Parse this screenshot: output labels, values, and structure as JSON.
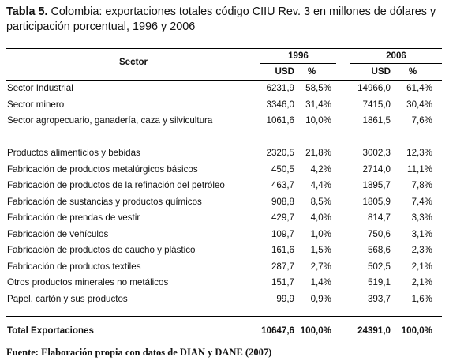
{
  "title": {
    "label": "Tabla 5.",
    "text": "Colombia: exportaciones totales código CIIU Rev. 3 en millones de dólares y participación porcentual, 1996 y 2006"
  },
  "table": {
    "header": {
      "sector": "Sector",
      "years": [
        "1996",
        "2006"
      ],
      "units": [
        "USD",
        "%",
        "USD",
        "%"
      ]
    },
    "groups": [
      [
        [
          "Sector Industrial",
          "6231,9",
          "58,5%",
          "14966,0",
          "61,4%"
        ],
        [
          "Sector minero",
          "3346,0",
          "31,4%",
          "7415,0",
          "30,4%"
        ],
        [
          "Sector agropecuario, ganadería, caza y silvicultura",
          "1061,6",
          "10,0%",
          "1861,5",
          "7,6%"
        ]
      ],
      [
        [
          "Productos alimenticios y bebidas",
          "2320,5",
          "21,8%",
          "3002,3",
          "12,3%"
        ],
        [
          "Fabricación de productos metalúrgicos básicos",
          "450,5",
          "4,2%",
          "2714,0",
          "11,1%"
        ],
        [
          "Fabricación de productos de la refinación del petróleo",
          "463,7",
          "4,4%",
          "1895,7",
          "7,8%"
        ],
        [
          "Fabricación de sustancias y productos químicos",
          "908,8",
          "8,5%",
          "1805,9",
          "7,4%"
        ],
        [
          "Fabricación de prendas de vestir",
          "429,7",
          "4,0%",
          "814,7",
          "3,3%"
        ],
        [
          "Fabricación de vehículos",
          "109,7",
          "1,0%",
          "750,6",
          "3,1%"
        ],
        [
          "Fabricación de productos de caucho y plástico",
          "161,6",
          "1,5%",
          "568,6",
          "2,3%"
        ],
        [
          "Fabricación de productos textiles",
          "287,7",
          "2,7%",
          "502,5",
          "2,1%"
        ],
        [
          "Otros productos minerales no metálicos",
          "151,7",
          "1,4%",
          "519,1",
          "2,1%"
        ],
        [
          "Papel, cartón y sus productos",
          "99,9",
          "0,9%",
          "393,7",
          "1,6%"
        ]
      ]
    ],
    "total": [
      "Total Exportaciones",
      "10647,6",
      "100,0%",
      "24391,0",
      "100,0%"
    ]
  },
  "source": "Fuente: Elaboración propia con datos de DIAN y DANE (2007)"
}
